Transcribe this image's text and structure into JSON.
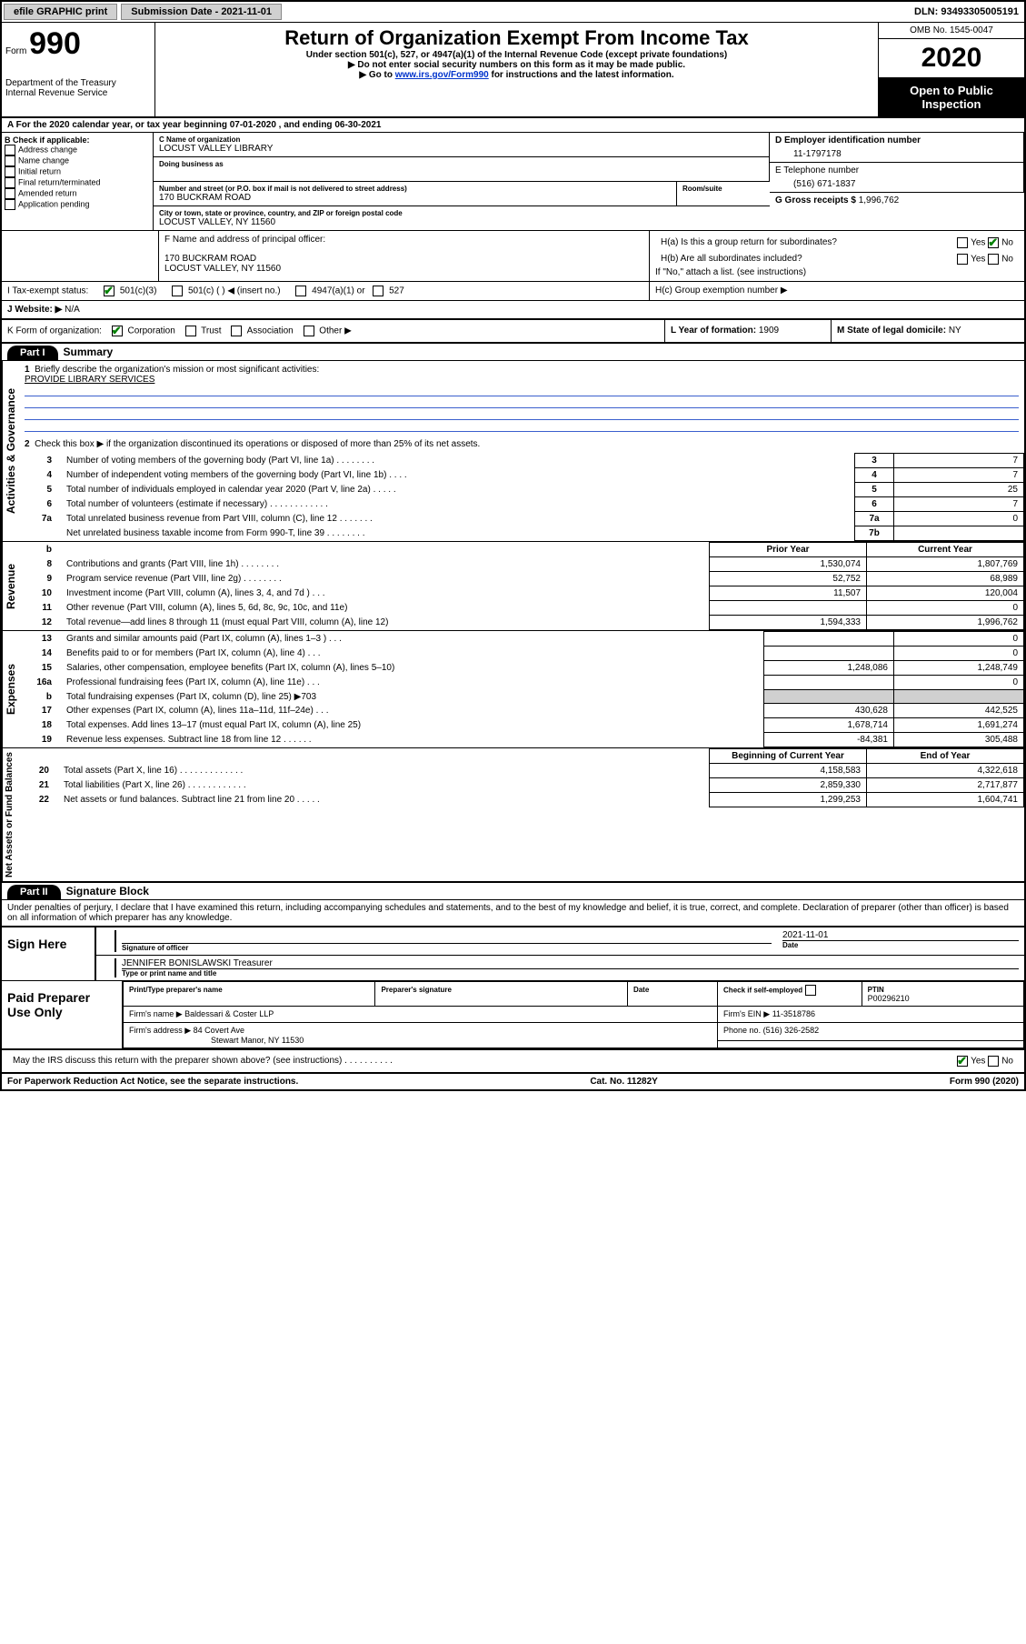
{
  "topbar": {
    "efile": "efile GRAPHIC print",
    "submission_label": "Submission Date - 2021-11-01",
    "dln": "DLN: 93493305005191"
  },
  "header": {
    "form_word": "Form",
    "form_num": "990",
    "dept": "Department of the Treasury\nInternal Revenue Service",
    "title": "Return of Organization Exempt From Income Tax",
    "sub1": "Under section 501(c), 527, or 4947(a)(1) of the Internal Revenue Code (except private foundations)",
    "sub2": "▶ Do not enter social security numbers on this form as it may be made public.",
    "sub3_pre": "▶ Go to ",
    "sub3_link": "www.irs.gov/Form990",
    "sub3_post": " for instructions and the latest information.",
    "omb": "OMB No. 1545-0047",
    "year": "2020",
    "inspect": "Open to Public Inspection"
  },
  "rowA": "A For the 2020 calendar year, or tax year beginning 07-01-2020   , and ending 06-30-2021",
  "B": {
    "label": "B Check if applicable:",
    "items": [
      "Address change",
      "Name change",
      "Initial return",
      "Final return/terminated",
      "Amended return",
      "Application pending"
    ]
  },
  "C": {
    "name_label": "C Name of organization",
    "name": "LOCUST VALLEY LIBRARY",
    "dba_label": "Doing business as",
    "street_label": "Number and street (or P.O. box if mail is not delivered to street address)",
    "room_label": "Room/suite",
    "street": "170 BUCKRAM ROAD",
    "city_label": "City or town, state or province, country, and ZIP or foreign postal code",
    "city": "LOCUST VALLEY, NY  11560"
  },
  "D": {
    "label": "D Employer identification number",
    "value": "11-1797178"
  },
  "E": {
    "label": "E Telephone number",
    "value": "(516) 671-1837"
  },
  "G": {
    "label": "G Gross receipts $",
    "value": "1,996,762"
  },
  "F": {
    "label": "F  Name and address of principal officer:",
    "addr1": "170 BUCKRAM ROAD",
    "addr2": "LOCUST VALLEY, NY  11560"
  },
  "H": {
    "a": "H(a)  Is this a group return for subordinates?",
    "b": "H(b)  Are all subordinates included?",
    "b_note": "If \"No,\" attach a list. (see instructions)",
    "c": "H(c)  Group exemption number ▶",
    "yes": "Yes",
    "no": "No"
  },
  "I": {
    "label": "I  Tax-exempt status:",
    "o1": "501(c)(3)",
    "o2": "501(c) (  ) ◀ (insert no.)",
    "o3": "4947(a)(1) or",
    "o4": "527"
  },
  "J": {
    "label": "J   Website: ▶",
    "value": "N/A"
  },
  "K": {
    "label": "K Form of organization:",
    "o1": "Corporation",
    "o2": "Trust",
    "o3": "Association",
    "o4": "Other ▶"
  },
  "L": {
    "label": "L Year of formation:",
    "value": "1909"
  },
  "M": {
    "label": "M State of legal domicile:",
    "value": "NY"
  },
  "part1": {
    "badge": "Part I",
    "title": "Summary",
    "q1": "Briefly describe the organization's mission or most significant activities:",
    "mission": "PROVIDE LIBRARY SERVICES",
    "q2": "Check this box ▶        if the organization discontinued its operations or disposed of more than 25% of its net assets.",
    "lines_gov": [
      {
        "n": "3",
        "d": "Number of voting members of the governing body (Part VI, line 1a)   .    .    .    .    .    .    .    .",
        "box": "3",
        "v": "7"
      },
      {
        "n": "4",
        "d": "Number of independent voting members of the governing body (Part VI, line 1b)    .    .    .    .",
        "box": "4",
        "v": "7"
      },
      {
        "n": "5",
        "d": "Total number of individuals employed in calendar year 2020 (Part V, line 2a)    .    .    .    .    .",
        "box": "5",
        "v": "25"
      },
      {
        "n": "6",
        "d": "Total number of volunteers (estimate if necessary)    .    .    .    .    .    .    .    .    .    .    .    .",
        "box": "6",
        "v": "7"
      },
      {
        "n": "7a",
        "d": "Total unrelated business revenue from Part VIII, column (C), line 12    .    .    .    .    .    .    .",
        "box": "7a",
        "v": "0"
      },
      {
        "n": "",
        "d": "Net unrelated business taxable income from Form 990-T, line 39   .    .    .    .    .    .    .    .",
        "box": "7b",
        "v": ""
      }
    ],
    "col_prior": "Prior Year",
    "col_curr": "Current Year",
    "rev": [
      {
        "n": "8",
        "d": "Contributions and grants (Part VIII, line 1h)    .    .    .    .    .    .    .    .",
        "p": "1,530,074",
        "c": "1,807,769"
      },
      {
        "n": "9",
        "d": "Program service revenue (Part VIII, line 2g)    .    .    .    .    .    .    .    .",
        "p": "52,752",
        "c": "68,989"
      },
      {
        "n": "10",
        "d": "Investment income (Part VIII, column (A), lines 3, 4, and 7d )    .    .    .",
        "p": "11,507",
        "c": "120,004"
      },
      {
        "n": "11",
        "d": "Other revenue (Part VIII, column (A), lines 5, 6d, 8c, 9c, 10c, and 11e)",
        "p": "",
        "c": "0"
      },
      {
        "n": "12",
        "d": "Total revenue—add lines 8 through 11 (must equal Part VIII, column (A), line 12)",
        "p": "1,594,333",
        "c": "1,996,762"
      }
    ],
    "exp": [
      {
        "n": "13",
        "d": "Grants and similar amounts paid (Part IX, column (A), lines 1–3 )    .    .    .",
        "p": "",
        "c": "0"
      },
      {
        "n": "14",
        "d": "Benefits paid to or for members (Part IX, column (A), line 4)    .    .    .",
        "p": "",
        "c": "0"
      },
      {
        "n": "15",
        "d": "Salaries, other compensation, employee benefits (Part IX, column (A), lines 5–10)",
        "p": "1,248,086",
        "c": "1,248,749"
      },
      {
        "n": "16a",
        "d": "Professional fundraising fees (Part IX, column (A), line 11e)    .    .    .",
        "p": "",
        "c": "0"
      },
      {
        "n": "b",
        "d": "Total fundraising expenses (Part IX, column (D), line 25) ▶703",
        "p": "shade",
        "c": "shade"
      },
      {
        "n": "17",
        "d": "Other expenses (Part IX, column (A), lines 11a–11d, 11f–24e)    .    .    .",
        "p": "430,628",
        "c": "442,525"
      },
      {
        "n": "18",
        "d": "Total expenses. Add lines 13–17 (must equal Part IX, column (A), line 25)",
        "p": "1,678,714",
        "c": "1,691,274"
      },
      {
        "n": "19",
        "d": "Revenue less expenses. Subtract line 18 from line 12    .    .    .    .    .    .",
        "p": "-84,381",
        "c": "305,488"
      }
    ],
    "col_beg": "Beginning of Current Year",
    "col_end": "End of Year",
    "net": [
      {
        "n": "20",
        "d": "Total assets (Part X, line 16)    .    .    .    .    .    .    .    .    .    .    .    .    .",
        "p": "4,158,583",
        "c": "4,322,618"
      },
      {
        "n": "21",
        "d": "Total liabilities (Part X, line 26)    .    .    .    .    .    .    .    .    .    .    .    .",
        "p": "2,859,330",
        "c": "2,717,877"
      },
      {
        "n": "22",
        "d": "Net assets or fund balances. Subtract line 21 from line 20    .    .    .    .    .",
        "p": "1,299,253",
        "c": "1,604,741"
      }
    ]
  },
  "vlabels": {
    "gov": "Activities & Governance",
    "rev": "Revenue",
    "exp": "Expenses",
    "net": "Net Assets or Fund Balances"
  },
  "part2": {
    "badge": "Part II",
    "title": "Signature Block",
    "perjury": "Under penalties of perjury, I declare that I have examined this return, including accompanying schedules and statements, and to the best of my knowledge and belief, it is true, correct, and complete. Declaration of preparer (other than officer) is based on all information of which preparer has any knowledge."
  },
  "sign": {
    "here": "Sign Here",
    "sig_label": "Signature of officer",
    "date_label": "Date",
    "date": "2021-11-01",
    "name": "JENNIFER BONISLAWSKI  Treasurer",
    "name_label": "Type or print name and title"
  },
  "prep": {
    "label": "Paid Preparer Use Only",
    "h1": "Print/Type preparer's name",
    "h2": "Preparer's signature",
    "h3": "Date",
    "h4": "Check        if self-employed",
    "h5_label": "PTIN",
    "h5": "P00296210",
    "firm_name_label": "Firm's name      ▶",
    "firm_name": "Baldessari & Coster LLP",
    "firm_ein_label": "Firm's EIN ▶",
    "firm_ein": "11-3518786",
    "firm_addr_label": "Firm's address ▶",
    "firm_addr1": "84 Covert Ave",
    "firm_addr2": "Stewart Manor, NY  11530",
    "phone_label": "Phone no.",
    "phone": "(516) 326-2582"
  },
  "discuss": "May the IRS discuss this return with the preparer shown above? (see instructions)    .    .    .    .    .    .    .    .    .    .",
  "footer": {
    "left": "For Paperwork Reduction Act Notice, see the separate instructions.",
    "mid": "Cat. No. 11282Y",
    "right_a": "Form ",
    "right_b": "990",
    "right_c": " (2020)"
  }
}
